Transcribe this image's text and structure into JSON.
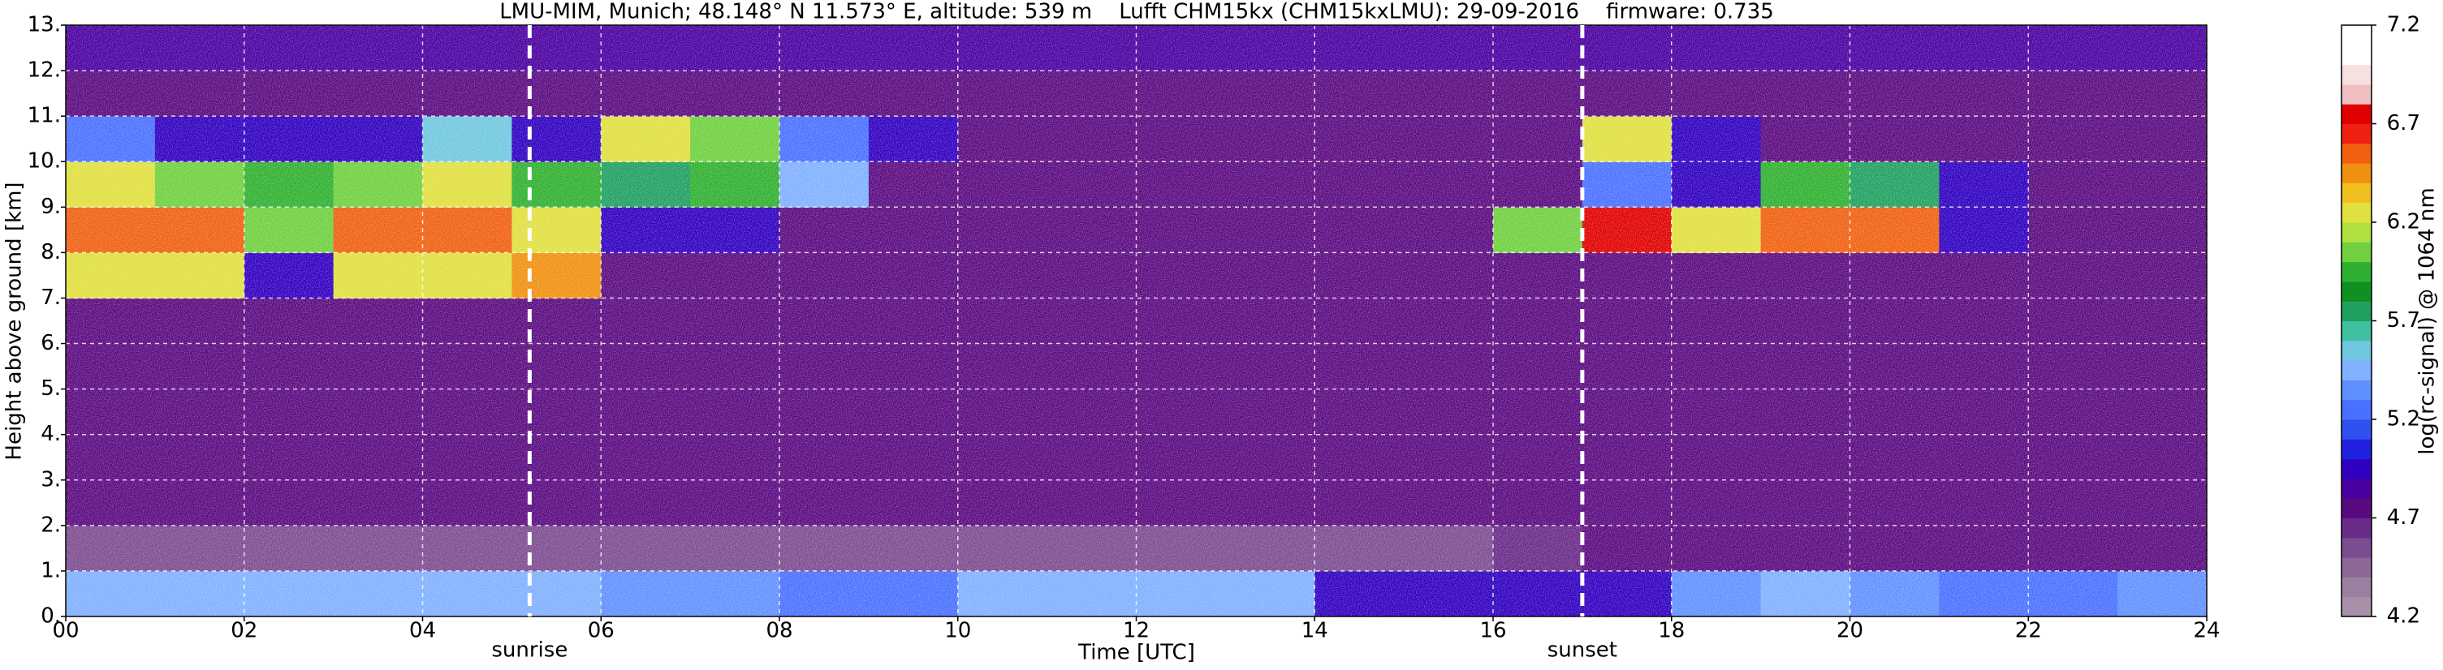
{
  "chart_data": {
    "type": "heatmap",
    "title": "LMU-MIM, Munich; 48.148° N 11.573° E, altitude: 539 m    Lufft CHM15kx (CHM15kxLMU): 29-09-2016    firmware: 0.735",
    "x_label": "Time [UTC]",
    "y_label": "Height above ground [km]",
    "colorbar_label": "log(rc-signal) @ 1064 nm",
    "xlim": [
      0,
      24
    ],
    "ylim": [
      0,
      13
    ],
    "xticks": [
      {
        "value": 0,
        "label": "00"
      },
      {
        "value": 2,
        "label": "02"
      },
      {
        "value": 4,
        "label": "04"
      },
      {
        "value": 6,
        "label": "06"
      },
      {
        "value": 8,
        "label": "08"
      },
      10,
      12,
      14,
      16,
      18,
      20,
      22,
      24
    ],
    "yticks": [
      {
        "value": 0,
        "label": "0."
      },
      {
        "value": 1,
        "label": "1."
      },
      {
        "value": 2,
        "label": "2."
      },
      {
        "value": 3,
        "label": "3."
      },
      {
        "value": 4,
        "label": "4."
      },
      {
        "value": 5,
        "label": "5."
      },
      {
        "value": 6,
        "label": "6."
      },
      {
        "value": 7,
        "label": "7."
      },
      {
        "value": 8,
        "label": "8."
      },
      {
        "value": 9,
        "label": "9."
      },
      {
        "value": 10,
        "label": "10."
      },
      {
        "value": 11,
        "label": "11."
      },
      {
        "value": 12,
        "label": "12."
      },
      {
        "value": 13,
        "label": "13."
      }
    ],
    "grid": true,
    "x_bins": [
      0,
      1,
      2,
      3,
      4,
      5,
      6,
      7,
      8,
      9,
      10,
      11,
      12,
      13,
      14,
      15,
      16,
      17,
      18,
      19,
      20,
      21,
      22,
      23,
      24
    ],
    "y_bins": [
      0,
      1,
      2,
      3,
      4,
      5,
      6,
      7,
      8,
      9,
      10,
      11,
      12,
      13
    ],
    "z": [
      [
        5.45,
        5.45,
        5.45,
        5.45,
        5.45,
        5.4,
        5.35,
        5.35,
        5.3,
        5.3,
        5.45,
        5.45,
        5.45,
        5.4,
        5.0,
        4.9,
        4.95,
        4.95,
        5.35,
        5.4,
        5.35,
        5.3,
        5.3,
        5.35
      ],
      [
        4.6,
        4.6,
        4.6,
        4.6,
        4.6,
        4.6,
        4.6,
        4.6,
        4.6,
        4.6,
        4.6,
        4.6,
        4.6,
        4.6,
        4.6,
        4.6,
        4.65,
        4.7,
        4.7,
        4.7,
        4.7,
        4.7,
        4.7,
        4.75
      ],
      [
        4.8,
        4.8,
        4.8,
        4.8,
        4.8,
        4.8,
        4.8,
        4.8,
        4.8,
        4.8,
        4.8,
        4.8,
        4.8,
        4.8,
        4.8,
        4.8,
        4.8,
        4.8,
        4.8,
        4.8,
        4.8,
        4.8,
        4.8,
        4.8
      ],
      [
        4.8,
        4.8,
        4.8,
        4.8,
        4.8,
        4.8,
        4.8,
        4.8,
        4.8,
        4.8,
        4.8,
        4.8,
        4.8,
        4.8,
        4.8,
        4.8,
        4.8,
        4.8,
        4.8,
        4.8,
        4.8,
        4.8,
        4.8,
        4.8
      ],
      [
        4.8,
        4.8,
        4.8,
        4.8,
        4.8,
        4.8,
        4.8,
        4.8,
        4.8,
        4.8,
        4.8,
        4.8,
        4.8,
        4.8,
        4.8,
        4.8,
        4.8,
        4.8,
        4.8,
        4.8,
        4.8,
        4.8,
        4.8,
        4.8
      ],
      [
        4.8,
        4.8,
        4.8,
        4.8,
        4.8,
        4.8,
        4.8,
        4.8,
        4.8,
        4.8,
        4.8,
        4.8,
        4.8,
        4.8,
        4.8,
        4.8,
        4.8,
        4.8,
        4.8,
        4.8,
        4.8,
        4.8,
        4.8,
        4.8
      ],
      [
        4.8,
        4.8,
        4.8,
        4.8,
        4.8,
        4.8,
        4.8,
        4.8,
        4.8,
        4.8,
        4.8,
        4.8,
        4.8,
        4.8,
        4.8,
        4.8,
        4.8,
        4.8,
        4.8,
        4.8,
        4.8,
        4.8,
        4.8,
        4.8
      ],
      [
        6.3,
        6.3,
        5.0,
        6.2,
        6.3,
        6.4,
        4.8,
        4.8,
        4.8,
        4.8,
        4.8,
        4.8,
        4.8,
        4.8,
        4.8,
        4.8,
        4.8,
        4.8,
        4.8,
        4.8,
        4.8,
        4.8,
        4.8,
        4.8
      ],
      [
        6.6,
        6.5,
        6.0,
        6.6,
        6.6,
        6.3,
        5.0,
        4.9,
        4.8,
        4.8,
        4.8,
        4.8,
        4.8,
        4.8,
        4.8,
        4.8,
        6.0,
        6.7,
        6.2,
        6.5,
        6.5,
        4.9,
        4.8,
        4.8
      ],
      [
        6.2,
        6.0,
        5.9,
        6.0,
        6.3,
        5.9,
        5.8,
        5.9,
        5.5,
        4.8,
        4.8,
        4.8,
        4.8,
        4.8,
        4.8,
        4.8,
        4.8,
        5.3,
        5.0,
        5.9,
        5.8,
        4.9,
        4.8,
        4.8
      ],
      [
        5.3,
        5.0,
        4.9,
        4.9,
        5.6,
        4.9,
        6.2,
        6.0,
        5.2,
        4.9,
        4.8,
        4.8,
        4.8,
        4.8,
        4.8,
        4.8,
        4.8,
        6.3,
        5.0,
        4.8,
        4.8,
        4.8,
        4.8,
        4.8
      ],
      [
        4.8,
        4.8,
        4.8,
        4.8,
        4.8,
        4.8,
        4.8,
        4.8,
        4.8,
        4.8,
        4.8,
        4.8,
        4.8,
        4.8,
        4.8,
        4.8,
        4.8,
        4.8,
        4.8,
        4.8,
        4.8,
        4.8,
        4.8,
        4.8
      ],
      [
        4.85,
        4.85,
        4.85,
        4.85,
        4.85,
        4.85,
        4.85,
        4.85,
        4.85,
        4.85,
        4.85,
        4.85,
        4.85,
        4.85,
        4.85,
        4.85,
        4.85,
        4.85,
        4.85,
        4.85,
        4.85,
        4.85,
        4.85,
        4.85
      ]
    ],
    "clim": [
      4.2,
      7.2
    ],
    "cticks": [
      4.2,
      4.7,
      5.2,
      5.7,
      6.2,
      6.7,
      7.2
    ],
    "colormap": [
      "#a890a8",
      "#9c80a0",
      "#8c6898",
      "#7c4c90",
      "#6a2a88",
      "#5a0a80",
      "#4a00a0",
      "#3000c0",
      "#2020e0",
      "#3050f0",
      "#4a70ff",
      "#6090ff",
      "#80b0ff",
      "#70c8e0",
      "#40c0a0",
      "#20a060",
      "#109020",
      "#30b030",
      "#70d040",
      "#b0e040",
      "#e0e040",
      "#f0c020",
      "#f09010",
      "#f06010",
      "#f02010",
      "#e00000",
      "#f0c0c0",
      "#f8e0e0",
      "#ffffff",
      "#ffffff"
    ],
    "annotations": [
      {
        "text": "sunrise",
        "x": 5.2
      },
      {
        "text": "sunset",
        "x": 17.0
      }
    ]
  }
}
